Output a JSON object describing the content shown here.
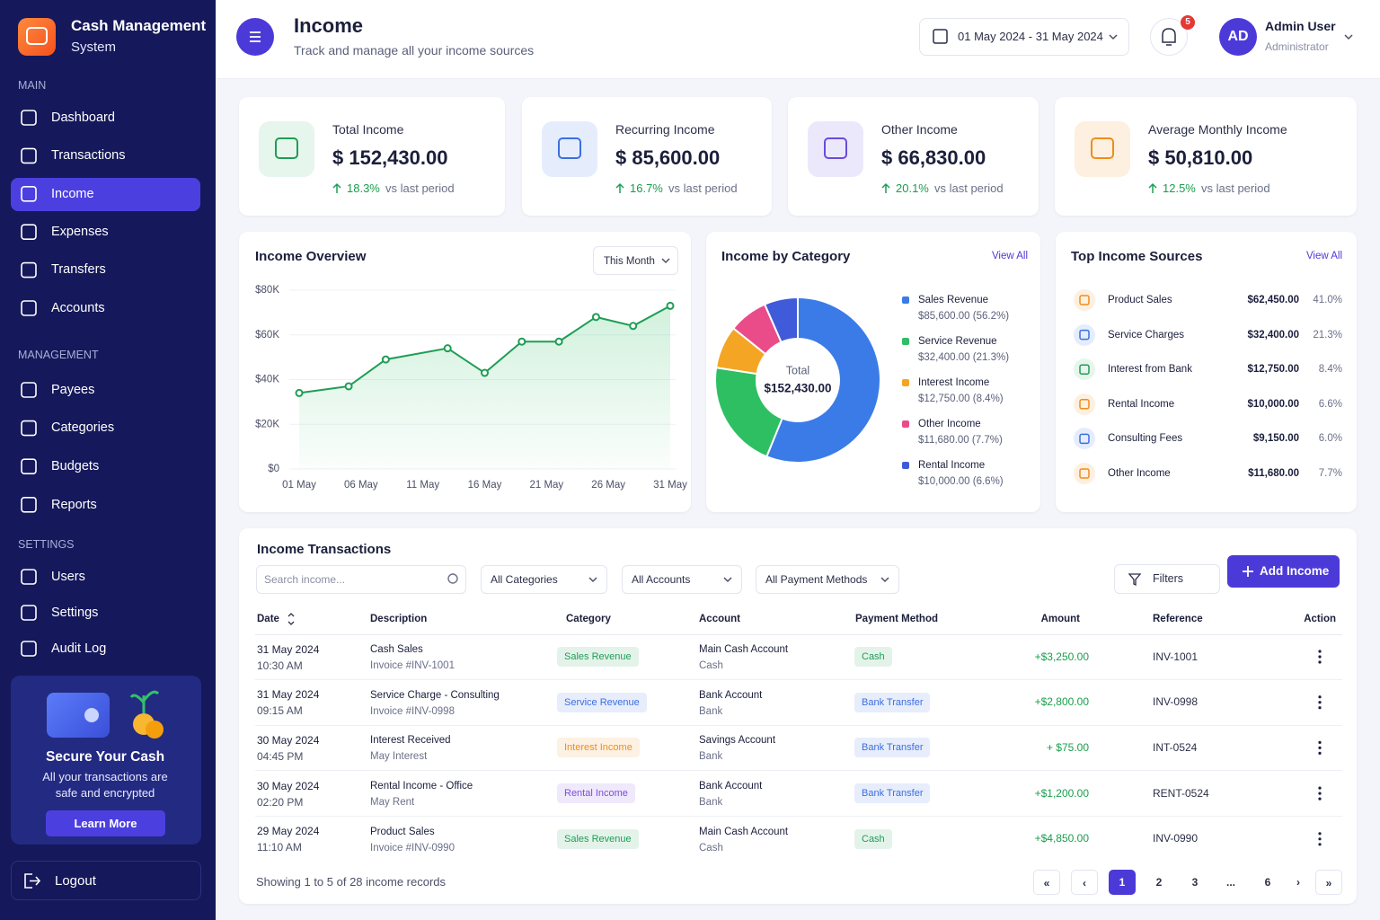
{
  "sidebar": {
    "brand_title": "Cash Management",
    "brand_subtitle": "System",
    "active": "Income",
    "sections": [
      {
        "title": "MAIN",
        "items": [
          "Dashboard",
          "Transactions",
          "Income",
          "Expenses",
          "Transfers",
          "Accounts"
        ]
      },
      {
        "title": "MANAGEMENT",
        "items": [
          "Payees",
          "Categories",
          "Budgets",
          "Reports"
        ]
      },
      {
        "title": "SETTINGS",
        "items": [
          "Users",
          "Settings",
          "Audit Log"
        ]
      }
    ],
    "promo": {
      "title": "Secure Your Cash",
      "text": "All your transactions are safe and encrypted",
      "button": "Learn More"
    },
    "logout": "Logout"
  },
  "header": {
    "title": "Income",
    "subtitle": "Track and manage all your income sources",
    "date_range": "01 May 2024 - 31 May 2024",
    "notifications": 5,
    "avatar": "AD",
    "user_name": "Admin User",
    "user_role": "Administrator"
  },
  "stats": [
    {
      "label": "Total Income",
      "value": "$ 152,430.00",
      "change": "18.3%",
      "note": "vs last period"
    },
    {
      "label": "Recurring Income",
      "value": "$ 85,600.00",
      "change": "16.7%",
      "note": "vs last period"
    },
    {
      "label": "Other Income",
      "value": "$ 66,830.00",
      "change": "20.1%",
      "note": "vs last period"
    },
    {
      "label": "Average Monthly Income",
      "value": "$ 50,810.00",
      "change": "12.5%",
      "note": "vs last period"
    }
  ],
  "chart_data": [
    {
      "type": "line",
      "title": "Income Overview",
      "filter": "This Month",
      "x": [
        1,
        5,
        8,
        13,
        16,
        19,
        22,
        25,
        28,
        31
      ],
      "values": [
        34000,
        37000,
        49000,
        54000,
        43000,
        57000,
        57000,
        68000,
        64000,
        73000
      ],
      "color": "#1f9d55",
      "xlim": [
        1,
        31
      ],
      "xticks": [
        {
          "value": 1,
          "label": "01 May"
        },
        {
          "value": 6,
          "label": "06 May"
        },
        {
          "value": 11,
          "label": "11 May"
        },
        {
          "value": 16,
          "label": "16 May"
        },
        {
          "value": 21,
          "label": "21 May"
        },
        {
          "value": 26,
          "label": "26 May"
        },
        {
          "value": 31,
          "label": "31 May"
        }
      ],
      "ylim": [
        0,
        80000
      ],
      "yticks": [
        {
          "value": 0,
          "label": "$0"
        },
        {
          "value": 20000,
          "label": "$20K"
        },
        {
          "value": 40000,
          "label": "$40K"
        },
        {
          "value": 60000,
          "label": "$60K"
        },
        {
          "value": 80000,
          "label": "$80K"
        }
      ],
      "grid": true
    },
    {
      "type": "pie",
      "title": "Income by Category",
      "link": "View All",
      "center_label": "Total",
      "center_value": "$152,430.00",
      "categories": [
        "Sales Revenue",
        "Service Revenue",
        "Interest Income",
        "Other Income",
        "Rental Income"
      ],
      "values": [
        85600,
        32400,
        12750,
        11680,
        10000
      ],
      "value_labels": [
        "$85,600.00 (56.2%)",
        "$32,400.00 (21.3%)",
        "$12,750.00 (8.4%)",
        "$11,680.00 (7.7%)",
        "$10,000.00 (6.6%)"
      ],
      "colors": [
        "#3b7be8",
        "#2fbf63",
        "#f5a524",
        "#ea4c89",
        "#3f5bd9"
      ]
    }
  ],
  "top_sources": {
    "title": "Top Income Sources",
    "link": "View All",
    "rows": [
      {
        "name": "Product Sales",
        "amount": "$62,450.00",
        "share": "41.0%"
      },
      {
        "name": "Service Charges",
        "amount": "$32,400.00",
        "share": "21.3%"
      },
      {
        "name": "Interest from Bank",
        "amount": "$12,750.00",
        "share": "8.4%"
      },
      {
        "name": "Rental Income",
        "amount": "$10,000.00",
        "share": "6.6%"
      },
      {
        "name": "Consulting Fees",
        "amount": "$9,150.00",
        "share": "6.0%"
      },
      {
        "name": "Other Income",
        "amount": "$11,680.00",
        "share": "7.7%"
      }
    ]
  },
  "transactions": {
    "title": "Income Transactions",
    "search_placeholder": "Search income...",
    "filters": [
      "All Categories",
      "All Accounts",
      "All Payment Methods"
    ],
    "filters_button": "Filters",
    "add_button": "Add Income",
    "columns": [
      "Date",
      "Description",
      "Category",
      "Account",
      "Payment Method",
      "Amount",
      "Reference",
      "Action"
    ],
    "rows": [
      {
        "date": "31 May 2024",
        "time": "10:30 AM",
        "description": "Cash Sales",
        "detail": "Invoice #INV-1001",
        "category": "Sales Revenue",
        "category_color": "#1f9d55",
        "account": "Main Cash Account",
        "account_type": "Cash",
        "method": "Cash",
        "method_color": "#1f9d55",
        "amount": "+$3,250.00",
        "reference": "INV-1001"
      },
      {
        "date": "31 May 2024",
        "time": "09:15 AM",
        "description": "Service Charge - Consulting",
        "detail": "Invoice #INV-0998",
        "category": "Service Revenue",
        "category_color": "#3b6fe0",
        "account": "Bank Account",
        "account_type": "Bank",
        "method": "Bank Transfer",
        "method_color": "#3b6fe0",
        "amount": "+$2,800.00",
        "reference": "INV-0998"
      },
      {
        "date": "30 May 2024",
        "time": "04:45 PM",
        "description": "Interest Received",
        "detail": "May Interest",
        "category": "Interest Income",
        "category_color": "#f08c1a",
        "account": "Savings Account",
        "account_type": "Bank",
        "method": "Bank Transfer",
        "method_color": "#3b6fe0",
        "amount": "+ $75.00",
        "reference": "INT-0524"
      },
      {
        "date": "30 May 2024",
        "time": "02:20 PM",
        "description": "Rental Income - Office",
        "detail": "May Rent",
        "category": "Rental Income",
        "category_color": "#7c4ddb",
        "account": "Bank Account",
        "account_type": "Bank",
        "method": "Bank Transfer",
        "method_color": "#3b6fe0",
        "amount": "+$1,200.00",
        "reference": "RENT-0524"
      },
      {
        "date": "29 May 2024",
        "time": "11:10 AM",
        "description": "Product Sales",
        "detail": "Invoice #INV-0990",
        "category": "Sales Revenue",
        "category_color": "#1f9d55",
        "account": "Main Cash Account",
        "account_type": "Cash",
        "method": "Cash",
        "method_color": "#1f9d55",
        "amount": "+$4,850.00",
        "reference": "INV-0990"
      }
    ],
    "summary": "Showing 1 to 5 of 28 income records",
    "pagination": [
      "«",
      "‹",
      "1",
      "2",
      "3",
      "...",
      "6",
      "›",
      "»"
    ],
    "current_page": "1"
  }
}
